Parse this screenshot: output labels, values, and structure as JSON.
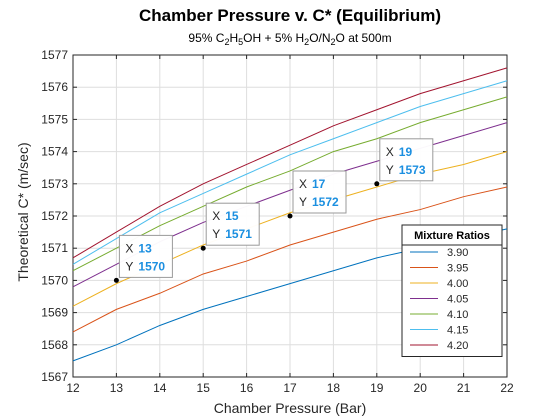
{
  "chart_data": {
    "type": "line",
    "title": "Chamber Pressure v. C* (Equilibrium)",
    "subtitle": {
      "parts": [
        {
          "t": "95% C",
          "sub": false
        },
        {
          "t": "2",
          "sub": true
        },
        {
          "t": "H",
          "sub": false
        },
        {
          "t": "5",
          "sub": true
        },
        {
          "t": "OH + 5% H",
          "sub": false
        },
        {
          "t": "2",
          "sub": true
        },
        {
          "t": "O/N",
          "sub": false
        },
        {
          "t": "2",
          "sub": true
        },
        {
          "t": "O at 500m",
          "sub": false
        }
      ]
    },
    "xlabel": "Chamber Pressure (Bar)",
    "ylabel": "Theoretical C* (m/sec)",
    "xlim": [
      12,
      22
    ],
    "ylim": [
      1567,
      1577
    ],
    "xticks": [
      "12",
      "13",
      "14",
      "15",
      "16",
      "17",
      "18",
      "19",
      "20",
      "21",
      "22"
    ],
    "yticks": [
      "1567",
      "1568",
      "1569",
      "1570",
      "1571",
      "1572",
      "1573",
      "1574",
      "1575",
      "1576",
      "1577"
    ],
    "grid": true,
    "legend": {
      "title": "Mixture Ratios",
      "placement": "bottom-right"
    },
    "x": [
      12,
      13,
      14,
      15,
      16,
      17,
      18,
      19,
      20,
      21,
      22
    ],
    "series": [
      {
        "name": "3.90",
        "color": "#0072BD",
        "values": [
          1567.5,
          1568.0,
          1568.6,
          1569.1,
          1569.5,
          1569.9,
          1570.3,
          1570.7,
          1571.0,
          1571.3,
          1571.6
        ]
      },
      {
        "name": "3.95",
        "color": "#D95319",
        "values": [
          1568.4,
          1569.1,
          1569.6,
          1570.2,
          1570.6,
          1571.1,
          1571.5,
          1571.9,
          1572.2,
          1572.6,
          1572.9
        ]
      },
      {
        "name": "4.00",
        "color": "#EDB120",
        "values": [
          1569.2,
          1569.9,
          1570.5,
          1571.1,
          1571.6,
          1572.1,
          1572.5,
          1572.9,
          1573.3,
          1573.6,
          1574.0
        ]
      },
      {
        "name": "4.05",
        "color": "#7E2F8E",
        "values": [
          1569.8,
          1570.5,
          1571.2,
          1571.8,
          1572.3,
          1572.8,
          1573.3,
          1573.7,
          1574.1,
          1574.5,
          1574.9
        ]
      },
      {
        "name": "4.10",
        "color": "#77AC30",
        "values": [
          1570.3,
          1571.0,
          1571.7,
          1572.3,
          1572.9,
          1573.4,
          1574.0,
          1574.4,
          1574.9,
          1575.3,
          1575.7
        ]
      },
      {
        "name": "4.15",
        "color": "#4DBEEE",
        "values": [
          1570.5,
          1571.3,
          1572.1,
          1572.7,
          1573.3,
          1573.9,
          1574.4,
          1574.9,
          1575.4,
          1575.8,
          1576.2
        ]
      },
      {
        "name": "4.20",
        "color": "#A2142F",
        "values": [
          1570.7,
          1571.5,
          1572.3,
          1573.0,
          1573.6,
          1574.2,
          1574.8,
          1575.3,
          1575.8,
          1576.2,
          1576.6
        ]
      }
    ],
    "datatips": [
      {
        "x_label": "X",
        "y_label": "Y",
        "x": 13,
        "y": 1570,
        "x_text": "13",
        "y_text": "1570"
      },
      {
        "x_label": "X",
        "y_label": "Y",
        "x": 15,
        "y": 1571,
        "x_text": "15",
        "y_text": "1571"
      },
      {
        "x_label": "X",
        "y_label": "Y",
        "x": 17,
        "y": 1572,
        "x_text": "17",
        "y_text": "1572"
      },
      {
        "x_label": "X",
        "y_label": "Y",
        "x": 19,
        "y": 1573,
        "x_text": "19",
        "y_text": "1573"
      }
    ]
  }
}
